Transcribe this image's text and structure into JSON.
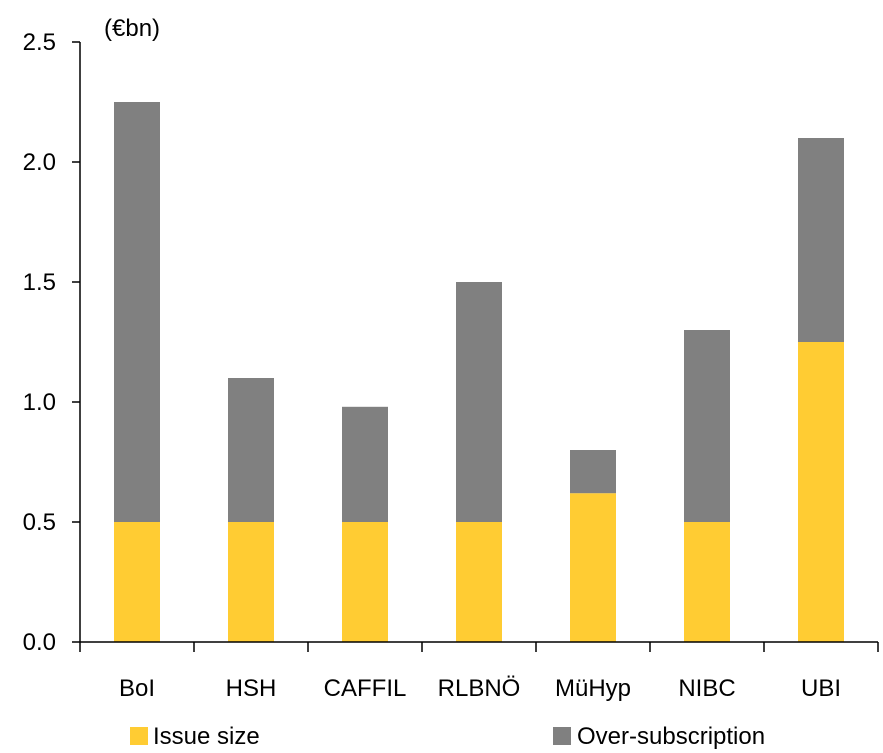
{
  "chart_data": {
    "type": "bar",
    "stacked": true,
    "unit_label": "(€bn)",
    "categories": [
      "BoI",
      "HSH",
      "CAFFIL",
      "RLBNÖ",
      "MüHyp",
      "NIBC",
      "UBI"
    ],
    "series": [
      {
        "name": "Issue size",
        "color": "#FFCC33",
        "values": [
          0.5,
          0.5,
          0.5,
          0.5,
          0.62,
          0.5,
          1.25
        ]
      },
      {
        "name": "Over-subscription",
        "color": "#808080",
        "values": [
          1.75,
          0.6,
          0.48,
          1.0,
          0.18,
          0.8,
          0.85
        ]
      }
    ],
    "ylim": [
      0,
      2.5
    ],
    "yticks": [
      "0.0",
      "0.5",
      "1.0",
      "1.5",
      "2.0",
      "2.5"
    ],
    "grid": false,
    "legend_position": "bottom"
  }
}
